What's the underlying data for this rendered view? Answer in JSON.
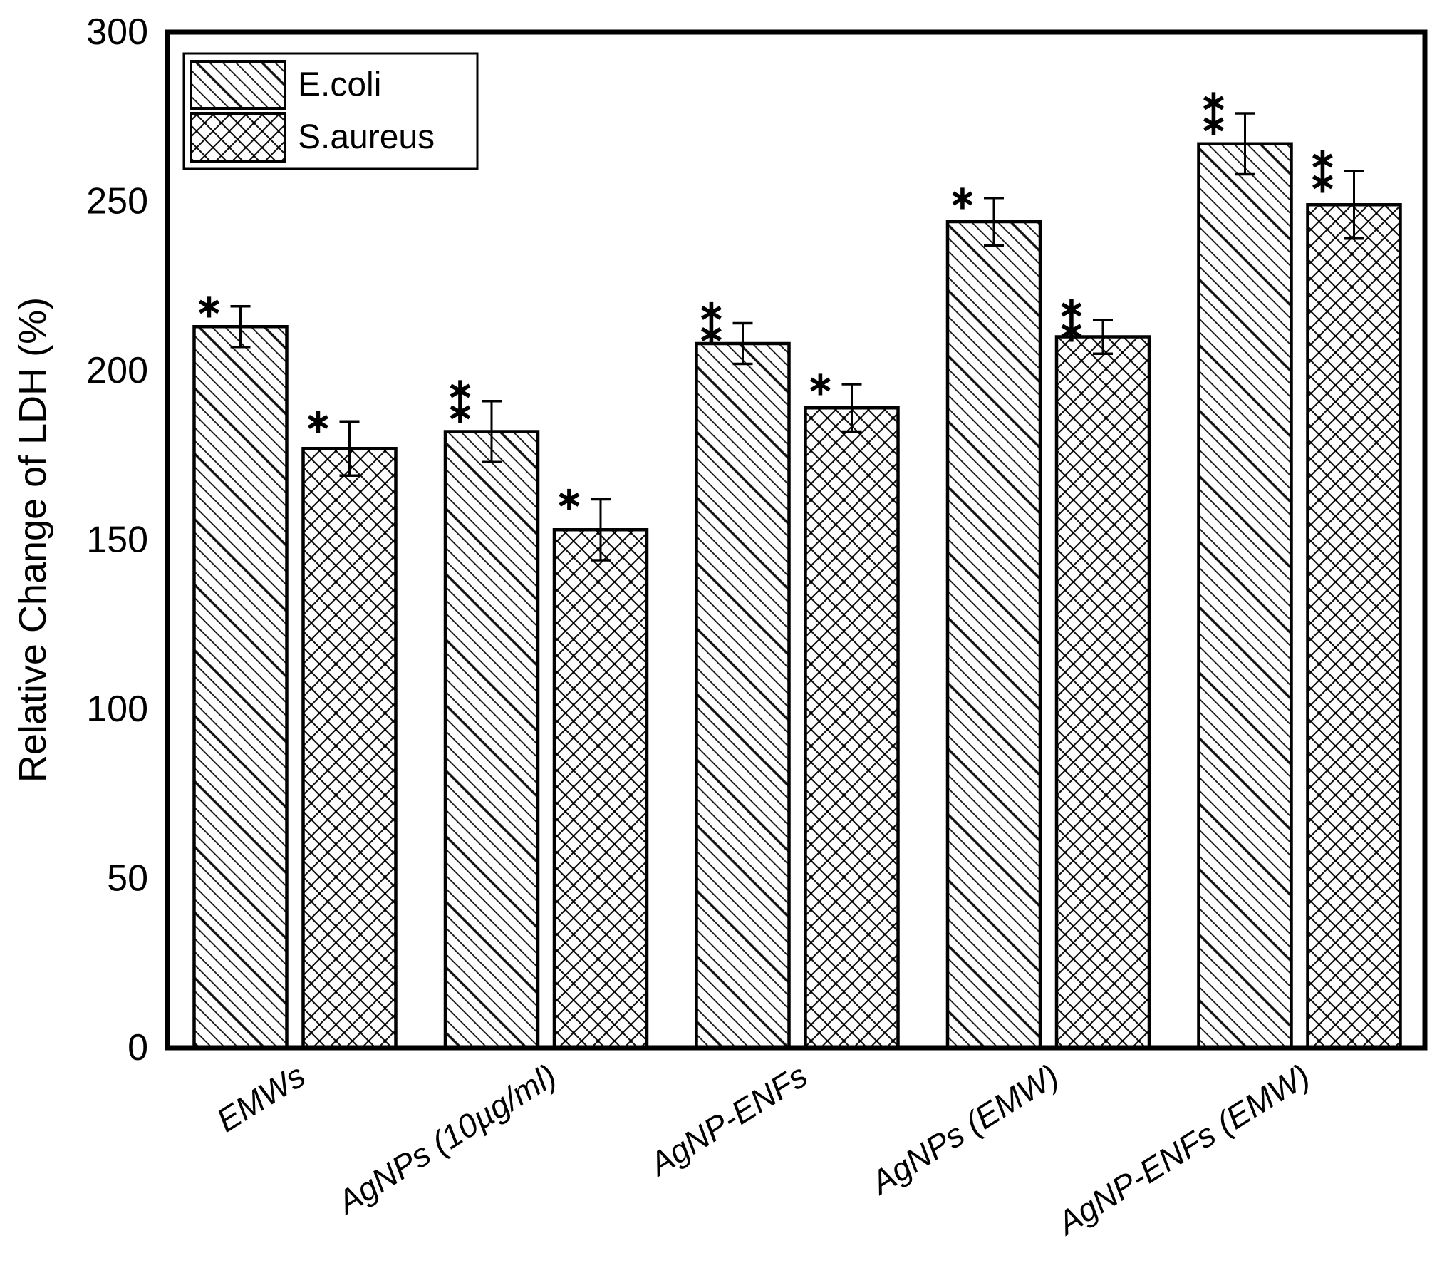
{
  "figure": {
    "background": "#ffffff",
    "ink": "#000000"
  },
  "chart_data": {
    "type": "bar",
    "title": "",
    "xlabel": "",
    "ylabel": "Relative Change of LDH (%)",
    "ylim": [
      0,
      300
    ],
    "yticks": [
      "0",
      "50",
      "100",
      "150",
      "200",
      "250",
      "300"
    ],
    "grid": false,
    "legend_position": "top-left-inside",
    "categories": [
      "EMWs",
      "AgNPs (10µg/ml)",
      "AgNP-ENFs",
      "AgNPs (EMW)",
      "AgNP-ENFs (EMW)"
    ],
    "series": [
      {
        "name": "E.coli",
        "hatch": "diagonal-backslash",
        "values": [
          213,
          182,
          208,
          244,
          267
        ],
        "errors": [
          6,
          9,
          6,
          7,
          9
        ],
        "significance": [
          "*",
          "**",
          "**",
          "*",
          "**"
        ]
      },
      {
        "name": "S.aureus",
        "hatch": "crosshatch",
        "values": [
          177,
          153,
          189,
          210,
          249
        ],
        "errors": [
          8,
          9,
          7,
          5,
          10
        ],
        "significance": [
          "*",
          "*",
          "*",
          "**",
          "**"
        ]
      }
    ]
  }
}
